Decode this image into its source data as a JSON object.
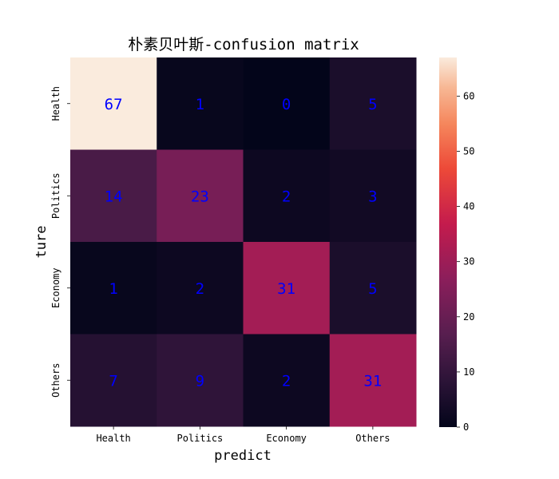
{
  "chart_data": {
    "type": "heatmap",
    "title": "朴素贝叶斯-confusion matrix",
    "xlabel": "predict",
    "ylabel": "ture",
    "x_categories": [
      "Health",
      "Politics",
      "Economy",
      "Others"
    ],
    "y_categories": [
      "Health",
      "Politics",
      "Economy",
      "Others"
    ],
    "values": [
      [
        67,
        1,
        0,
        5
      ],
      [
        14,
        23,
        2,
        3
      ],
      [
        1,
        2,
        31,
        5
      ],
      [
        7,
        9,
        2,
        31
      ]
    ],
    "colorbar": {
      "min": 0,
      "max": 67,
      "ticks": [
        "0",
        "10",
        "20",
        "30",
        "40",
        "50",
        "60"
      ],
      "colormap": "rocket"
    },
    "annotation_color": "#0000ff",
    "grid": false
  }
}
